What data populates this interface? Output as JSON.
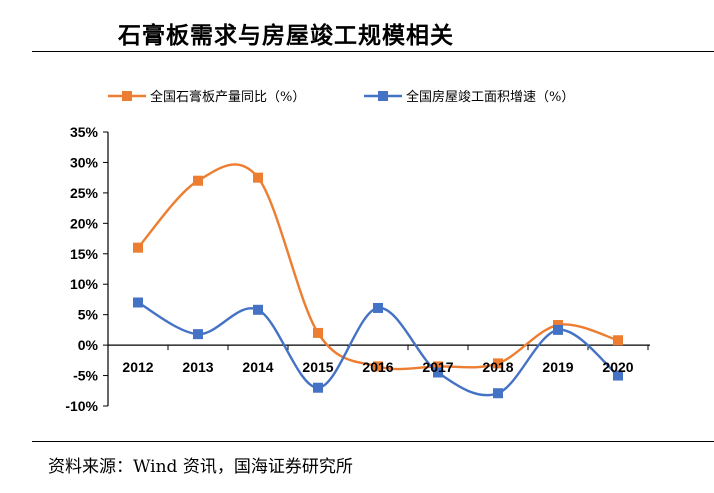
{
  "header": {
    "title": "石膏板需求与房屋竣工规模相关"
  },
  "footer": {
    "source": "资料来源：Wind 资讯，国海证券研究所"
  },
  "chart_data": {
    "type": "line",
    "title": "石膏板需求与房屋竣工规模相关",
    "categories": [
      "2012",
      "2013",
      "2014",
      "2015",
      "2016",
      "2017",
      "2018",
      "2019",
      "2020"
    ],
    "series": [
      {
        "name": "全国石膏板产量同比（%）",
        "color": "#ED7D31",
        "values": [
          16,
          27,
          27.5,
          2,
          -3.5,
          -3.5,
          -3,
          3.3,
          0.8
        ]
      },
      {
        "name": "全国房屋竣工面积增速（%）",
        "color": "#4472C4",
        "values": [
          7,
          1.8,
          5.8,
          -7,
          6.1,
          -4.5,
          -7.9,
          2.5,
          -5
        ]
      }
    ],
    "yticks": [
      "35%",
      "30%",
      "25%",
      "20%",
      "15%",
      "10%",
      "5%",
      "0%",
      "-5%",
      "-10%"
    ],
    "ylim": [
      -10,
      35
    ],
    "grid": false,
    "legend_position": "top",
    "smooth": true
  }
}
